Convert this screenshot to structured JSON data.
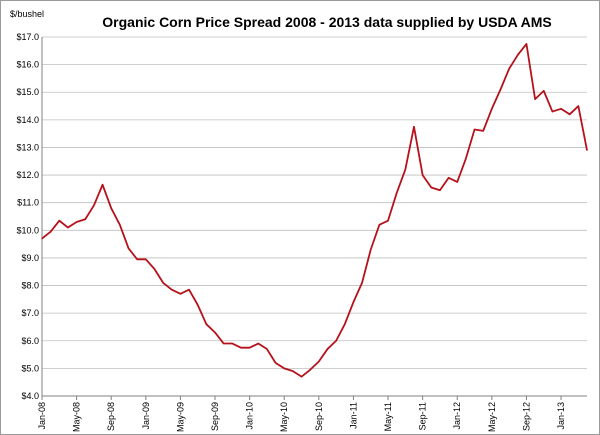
{
  "chart_data": {
    "type": "line",
    "title": "Organic Corn Price Spread 2008 - 2013 data supplied by USDA AMS",
    "ylabel": "$/bushel",
    "xlabel": "",
    "ylim": [
      4.0,
      17.0
    ],
    "y_ticks": [
      4,
      5,
      6,
      7,
      8,
      9,
      10,
      11,
      12,
      13,
      14,
      15,
      16,
      17
    ],
    "y_tick_labels": [
      "$4.0",
      "$5.0",
      "$6.0",
      "$7.0",
      "$8.0",
      "$9.0",
      "$10.0",
      "$11.0",
      "$12.0",
      "$13.0",
      "$14.0",
      "$15.0",
      "$16.0",
      "$17.0"
    ],
    "x_tick_labels": [
      {
        "label": "Jan-08",
        "index": 0
      },
      {
        "label": "May-08",
        "index": 4
      },
      {
        "label": "Sep-08",
        "index": 8
      },
      {
        "label": "Jan-09",
        "index": 12
      },
      {
        "label": "May-09",
        "index": 16
      },
      {
        "label": "Sep-09",
        "index": 20
      },
      {
        "label": "Jan-10",
        "index": 24
      },
      {
        "label": "May-10",
        "index": 28
      },
      {
        "label": "Sep-10",
        "index": 32
      },
      {
        "label": "Jan-11",
        "index": 36
      },
      {
        "label": "May-11",
        "index": 40
      },
      {
        "label": "Sep-11",
        "index": 44
      },
      {
        "label": "Jan-12",
        "index": 48
      },
      {
        "label": "May-12",
        "index": 52
      },
      {
        "label": "Sep-12",
        "index": 56
      },
      {
        "label": "Jan-13",
        "index": 60
      }
    ],
    "grid": true,
    "legend": "none",
    "line_color": "#b5121b",
    "series": [
      {
        "values": [
          9.7,
          9.95,
          10.35,
          10.1,
          10.3,
          10.4,
          10.9,
          11.65,
          10.8,
          10.2,
          9.35,
          8.95,
          8.95,
          8.6,
          8.1,
          7.85,
          7.7,
          7.85,
          7.3,
          6.6,
          6.3,
          5.9,
          5.9,
          5.75,
          5.75,
          5.9,
          5.7,
          5.2,
          5.0,
          4.9,
          4.7,
          4.95,
          5.25,
          5.7,
          6.0,
          6.6,
          7.4,
          8.1,
          9.3,
          10.2,
          10.35,
          11.35,
          12.2,
          13.75,
          12.0,
          11.55,
          11.45,
          11.9,
          11.75,
          12.6,
          13.65,
          13.6,
          14.4,
          15.1,
          15.85,
          16.35,
          16.75,
          14.75,
          15.05,
          14.3,
          14.4,
          14.2,
          14.5,
          12.9
        ]
      }
    ]
  }
}
